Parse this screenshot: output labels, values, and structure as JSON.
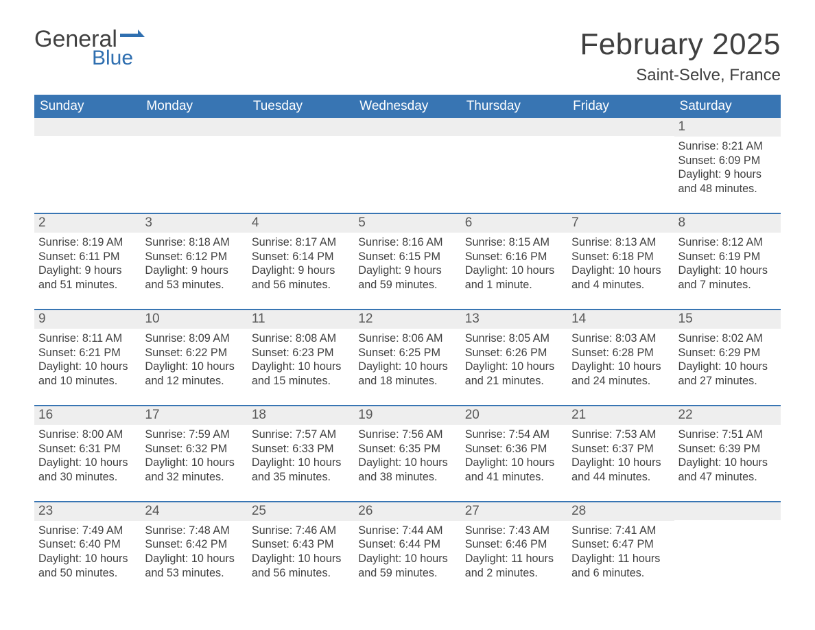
{
  "logo": {
    "text_a": "General",
    "text_b": "Blue",
    "color_a": "#404040",
    "color_b": "#2f6fb0",
    "flag_color": "#2f6fb0"
  },
  "header": {
    "title": "February 2025",
    "location": "Saint-Selve, France"
  },
  "theme": {
    "header_bg": "#3875b3",
    "header_text": "#ffffff",
    "date_bar_bg": "#eeeeee",
    "date_text": "#595959",
    "body_text": "#404040",
    "week_border": "#3875b3",
    "page_bg": "#ffffff",
    "title_fontsize": 44,
    "subtitle_fontsize": 24,
    "dow_fontsize": 19,
    "body_fontsize": 16
  },
  "days_of_week": [
    "Sunday",
    "Monday",
    "Tuesday",
    "Wednesday",
    "Thursday",
    "Friday",
    "Saturday"
  ],
  "weeks": [
    [
      {
        "date": "",
        "sunrise": "",
        "sunset": "",
        "daylight": ""
      },
      {
        "date": "",
        "sunrise": "",
        "sunset": "",
        "daylight": ""
      },
      {
        "date": "",
        "sunrise": "",
        "sunset": "",
        "daylight": ""
      },
      {
        "date": "",
        "sunrise": "",
        "sunset": "",
        "daylight": ""
      },
      {
        "date": "",
        "sunrise": "",
        "sunset": "",
        "daylight": ""
      },
      {
        "date": "",
        "sunrise": "",
        "sunset": "",
        "daylight": ""
      },
      {
        "date": "1",
        "sunrise": "Sunrise: 8:21 AM",
        "sunset": "Sunset: 6:09 PM",
        "daylight": "Daylight: 9 hours and 48 minutes."
      }
    ],
    [
      {
        "date": "2",
        "sunrise": "Sunrise: 8:19 AM",
        "sunset": "Sunset: 6:11 PM",
        "daylight": "Daylight: 9 hours and 51 minutes."
      },
      {
        "date": "3",
        "sunrise": "Sunrise: 8:18 AM",
        "sunset": "Sunset: 6:12 PM",
        "daylight": "Daylight: 9 hours and 53 minutes."
      },
      {
        "date": "4",
        "sunrise": "Sunrise: 8:17 AM",
        "sunset": "Sunset: 6:14 PM",
        "daylight": "Daylight: 9 hours and 56 minutes."
      },
      {
        "date": "5",
        "sunrise": "Sunrise: 8:16 AM",
        "sunset": "Sunset: 6:15 PM",
        "daylight": "Daylight: 9 hours and 59 minutes."
      },
      {
        "date": "6",
        "sunrise": "Sunrise: 8:15 AM",
        "sunset": "Sunset: 6:16 PM",
        "daylight": "Daylight: 10 hours and 1 minute."
      },
      {
        "date": "7",
        "sunrise": "Sunrise: 8:13 AM",
        "sunset": "Sunset: 6:18 PM",
        "daylight": "Daylight: 10 hours and 4 minutes."
      },
      {
        "date": "8",
        "sunrise": "Sunrise: 8:12 AM",
        "sunset": "Sunset: 6:19 PM",
        "daylight": "Daylight: 10 hours and 7 minutes."
      }
    ],
    [
      {
        "date": "9",
        "sunrise": "Sunrise: 8:11 AM",
        "sunset": "Sunset: 6:21 PM",
        "daylight": "Daylight: 10 hours and 10 minutes."
      },
      {
        "date": "10",
        "sunrise": "Sunrise: 8:09 AM",
        "sunset": "Sunset: 6:22 PM",
        "daylight": "Daylight: 10 hours and 12 minutes."
      },
      {
        "date": "11",
        "sunrise": "Sunrise: 8:08 AM",
        "sunset": "Sunset: 6:23 PM",
        "daylight": "Daylight: 10 hours and 15 minutes."
      },
      {
        "date": "12",
        "sunrise": "Sunrise: 8:06 AM",
        "sunset": "Sunset: 6:25 PM",
        "daylight": "Daylight: 10 hours and 18 minutes."
      },
      {
        "date": "13",
        "sunrise": "Sunrise: 8:05 AM",
        "sunset": "Sunset: 6:26 PM",
        "daylight": "Daylight: 10 hours and 21 minutes."
      },
      {
        "date": "14",
        "sunrise": "Sunrise: 8:03 AM",
        "sunset": "Sunset: 6:28 PM",
        "daylight": "Daylight: 10 hours and 24 minutes."
      },
      {
        "date": "15",
        "sunrise": "Sunrise: 8:02 AM",
        "sunset": "Sunset: 6:29 PM",
        "daylight": "Daylight: 10 hours and 27 minutes."
      }
    ],
    [
      {
        "date": "16",
        "sunrise": "Sunrise: 8:00 AM",
        "sunset": "Sunset: 6:31 PM",
        "daylight": "Daylight: 10 hours and 30 minutes."
      },
      {
        "date": "17",
        "sunrise": "Sunrise: 7:59 AM",
        "sunset": "Sunset: 6:32 PM",
        "daylight": "Daylight: 10 hours and 32 minutes."
      },
      {
        "date": "18",
        "sunrise": "Sunrise: 7:57 AM",
        "sunset": "Sunset: 6:33 PM",
        "daylight": "Daylight: 10 hours and 35 minutes."
      },
      {
        "date": "19",
        "sunrise": "Sunrise: 7:56 AM",
        "sunset": "Sunset: 6:35 PM",
        "daylight": "Daylight: 10 hours and 38 minutes."
      },
      {
        "date": "20",
        "sunrise": "Sunrise: 7:54 AM",
        "sunset": "Sunset: 6:36 PM",
        "daylight": "Daylight: 10 hours and 41 minutes."
      },
      {
        "date": "21",
        "sunrise": "Sunrise: 7:53 AM",
        "sunset": "Sunset: 6:37 PM",
        "daylight": "Daylight: 10 hours and 44 minutes."
      },
      {
        "date": "22",
        "sunrise": "Sunrise: 7:51 AM",
        "sunset": "Sunset: 6:39 PM",
        "daylight": "Daylight: 10 hours and 47 minutes."
      }
    ],
    [
      {
        "date": "23",
        "sunrise": "Sunrise: 7:49 AM",
        "sunset": "Sunset: 6:40 PM",
        "daylight": "Daylight: 10 hours and 50 minutes."
      },
      {
        "date": "24",
        "sunrise": "Sunrise: 7:48 AM",
        "sunset": "Sunset: 6:42 PM",
        "daylight": "Daylight: 10 hours and 53 minutes."
      },
      {
        "date": "25",
        "sunrise": "Sunrise: 7:46 AM",
        "sunset": "Sunset: 6:43 PM",
        "daylight": "Daylight: 10 hours and 56 minutes."
      },
      {
        "date": "26",
        "sunrise": "Sunrise: 7:44 AM",
        "sunset": "Sunset: 6:44 PM",
        "daylight": "Daylight: 10 hours and 59 minutes."
      },
      {
        "date": "27",
        "sunrise": "Sunrise: 7:43 AM",
        "sunset": "Sunset: 6:46 PM",
        "daylight": "Daylight: 11 hours and 2 minutes."
      },
      {
        "date": "28",
        "sunrise": "Sunrise: 7:41 AM",
        "sunset": "Sunset: 6:47 PM",
        "daylight": "Daylight: 11 hours and 6 minutes."
      },
      {
        "date": "",
        "sunrise": "",
        "sunset": "",
        "daylight": ""
      }
    ]
  ]
}
